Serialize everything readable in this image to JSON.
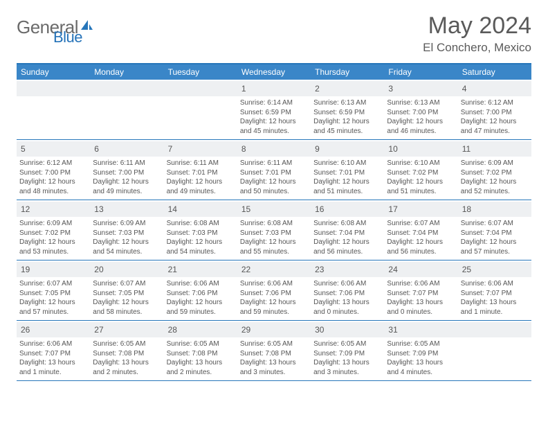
{
  "brand": {
    "part1": "General",
    "part2": "Blue"
  },
  "title": "May 2024",
  "location": "El Conchero, Mexico",
  "colors": {
    "header_bg": "#3a86c8",
    "border": "#2676ba",
    "daynum_bg": "#eef0f2",
    "text": "#555555",
    "white": "#ffffff"
  },
  "day_labels": [
    "Sunday",
    "Monday",
    "Tuesday",
    "Wednesday",
    "Thursday",
    "Friday",
    "Saturday"
  ],
  "weeks": [
    [
      {
        "empty": true
      },
      {
        "empty": true
      },
      {
        "empty": true
      },
      {
        "day": "1",
        "sunrise": "6:14 AM",
        "sunset": "6:59 PM",
        "daylight": "12 hours and 45 minutes."
      },
      {
        "day": "2",
        "sunrise": "6:13 AM",
        "sunset": "6:59 PM",
        "daylight": "12 hours and 45 minutes."
      },
      {
        "day": "3",
        "sunrise": "6:13 AM",
        "sunset": "7:00 PM",
        "daylight": "12 hours and 46 minutes."
      },
      {
        "day": "4",
        "sunrise": "6:12 AM",
        "sunset": "7:00 PM",
        "daylight": "12 hours and 47 minutes."
      }
    ],
    [
      {
        "day": "5",
        "sunrise": "6:12 AM",
        "sunset": "7:00 PM",
        "daylight": "12 hours and 48 minutes."
      },
      {
        "day": "6",
        "sunrise": "6:11 AM",
        "sunset": "7:00 PM",
        "daylight": "12 hours and 49 minutes."
      },
      {
        "day": "7",
        "sunrise": "6:11 AM",
        "sunset": "7:01 PM",
        "daylight": "12 hours and 49 minutes."
      },
      {
        "day": "8",
        "sunrise": "6:11 AM",
        "sunset": "7:01 PM",
        "daylight": "12 hours and 50 minutes."
      },
      {
        "day": "9",
        "sunrise": "6:10 AM",
        "sunset": "7:01 PM",
        "daylight": "12 hours and 51 minutes."
      },
      {
        "day": "10",
        "sunrise": "6:10 AM",
        "sunset": "7:02 PM",
        "daylight": "12 hours and 51 minutes."
      },
      {
        "day": "11",
        "sunrise": "6:09 AM",
        "sunset": "7:02 PM",
        "daylight": "12 hours and 52 minutes."
      }
    ],
    [
      {
        "day": "12",
        "sunrise": "6:09 AM",
        "sunset": "7:02 PM",
        "daylight": "12 hours and 53 minutes."
      },
      {
        "day": "13",
        "sunrise": "6:09 AM",
        "sunset": "7:03 PM",
        "daylight": "12 hours and 54 minutes."
      },
      {
        "day": "14",
        "sunrise": "6:08 AM",
        "sunset": "7:03 PM",
        "daylight": "12 hours and 54 minutes."
      },
      {
        "day": "15",
        "sunrise": "6:08 AM",
        "sunset": "7:03 PM",
        "daylight": "12 hours and 55 minutes."
      },
      {
        "day": "16",
        "sunrise": "6:08 AM",
        "sunset": "7:04 PM",
        "daylight": "12 hours and 56 minutes."
      },
      {
        "day": "17",
        "sunrise": "6:07 AM",
        "sunset": "7:04 PM",
        "daylight": "12 hours and 56 minutes."
      },
      {
        "day": "18",
        "sunrise": "6:07 AM",
        "sunset": "7:04 PM",
        "daylight": "12 hours and 57 minutes."
      }
    ],
    [
      {
        "day": "19",
        "sunrise": "6:07 AM",
        "sunset": "7:05 PM",
        "daylight": "12 hours and 57 minutes."
      },
      {
        "day": "20",
        "sunrise": "6:07 AM",
        "sunset": "7:05 PM",
        "daylight": "12 hours and 58 minutes."
      },
      {
        "day": "21",
        "sunrise": "6:06 AM",
        "sunset": "7:06 PM",
        "daylight": "12 hours and 59 minutes."
      },
      {
        "day": "22",
        "sunrise": "6:06 AM",
        "sunset": "7:06 PM",
        "daylight": "12 hours and 59 minutes."
      },
      {
        "day": "23",
        "sunrise": "6:06 AM",
        "sunset": "7:06 PM",
        "daylight": "13 hours and 0 minutes."
      },
      {
        "day": "24",
        "sunrise": "6:06 AM",
        "sunset": "7:07 PM",
        "daylight": "13 hours and 0 minutes."
      },
      {
        "day": "25",
        "sunrise": "6:06 AM",
        "sunset": "7:07 PM",
        "daylight": "13 hours and 1 minute."
      }
    ],
    [
      {
        "day": "26",
        "sunrise": "6:06 AM",
        "sunset": "7:07 PM",
        "daylight": "13 hours and 1 minute."
      },
      {
        "day": "27",
        "sunrise": "6:05 AM",
        "sunset": "7:08 PM",
        "daylight": "13 hours and 2 minutes."
      },
      {
        "day": "28",
        "sunrise": "6:05 AM",
        "sunset": "7:08 PM",
        "daylight": "13 hours and 2 minutes."
      },
      {
        "day": "29",
        "sunrise": "6:05 AM",
        "sunset": "7:08 PM",
        "daylight": "13 hours and 3 minutes."
      },
      {
        "day": "30",
        "sunrise": "6:05 AM",
        "sunset": "7:09 PM",
        "daylight": "13 hours and 3 minutes."
      },
      {
        "day": "31",
        "sunrise": "6:05 AM",
        "sunset": "7:09 PM",
        "daylight": "13 hours and 4 minutes."
      },
      {
        "empty": true
      }
    ]
  ]
}
